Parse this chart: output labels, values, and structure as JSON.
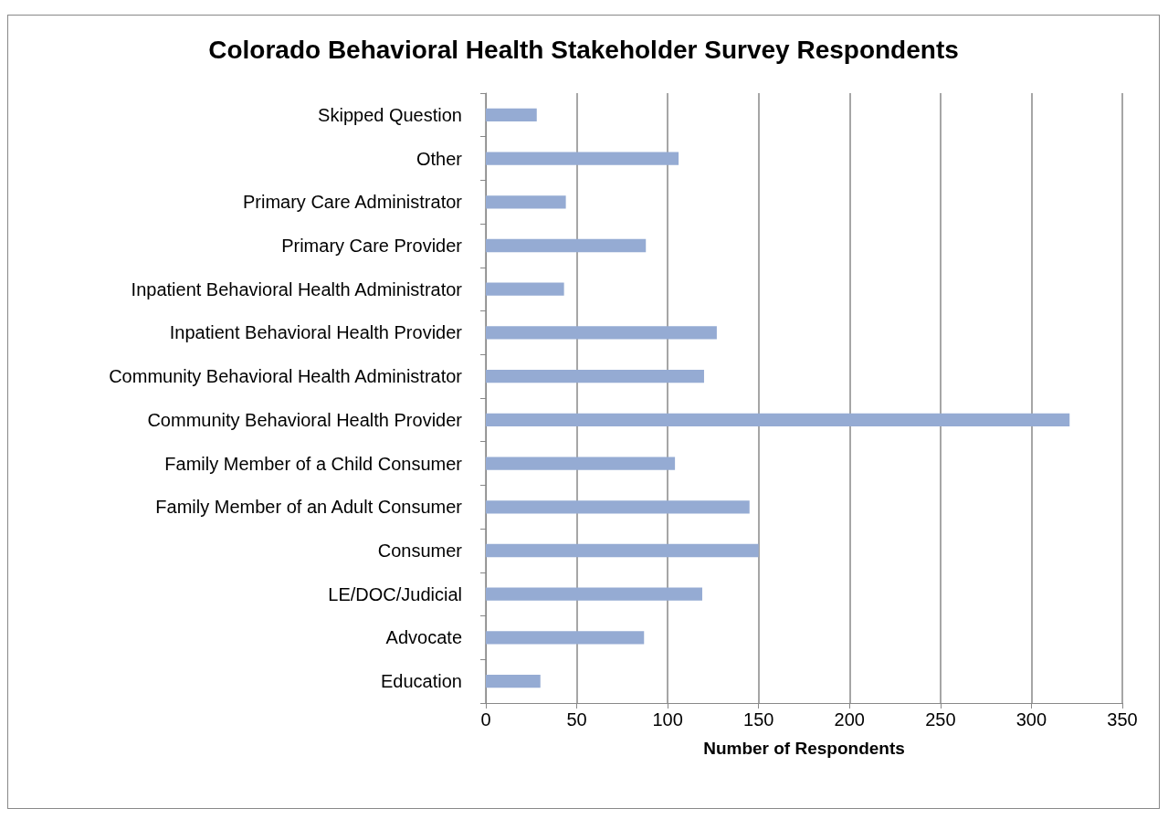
{
  "chart_data": {
    "type": "bar",
    "orientation": "horizontal",
    "title": "Colorado Behavioral Health Stakeholder Survey Respondents",
    "xlabel": "Number of Respondents",
    "categories": [
      "Skipped Question",
      "Other",
      "Primary Care Administrator",
      "Primary Care Provider",
      "Inpatient Behavioral Health Administrator",
      "Inpatient Behavioral Health Provider",
      "Community Behavioral Health Administrator",
      "Community Behavioral Health Provider",
      "Family Member of a Child Consumer",
      "Family Member of an Adult Consumer",
      "Consumer",
      "LE/DOC/Judicial",
      "Advocate",
      "Education"
    ],
    "values": [
      28,
      106,
      44,
      88,
      43,
      127,
      120,
      321,
      104,
      145,
      150,
      119,
      87,
      30
    ],
    "color": "#95abd3",
    "xlim": [
      0,
      350
    ],
    "xticks": [
      0,
      50,
      100,
      150,
      200,
      250,
      300,
      350
    ],
    "grid": "x"
  }
}
